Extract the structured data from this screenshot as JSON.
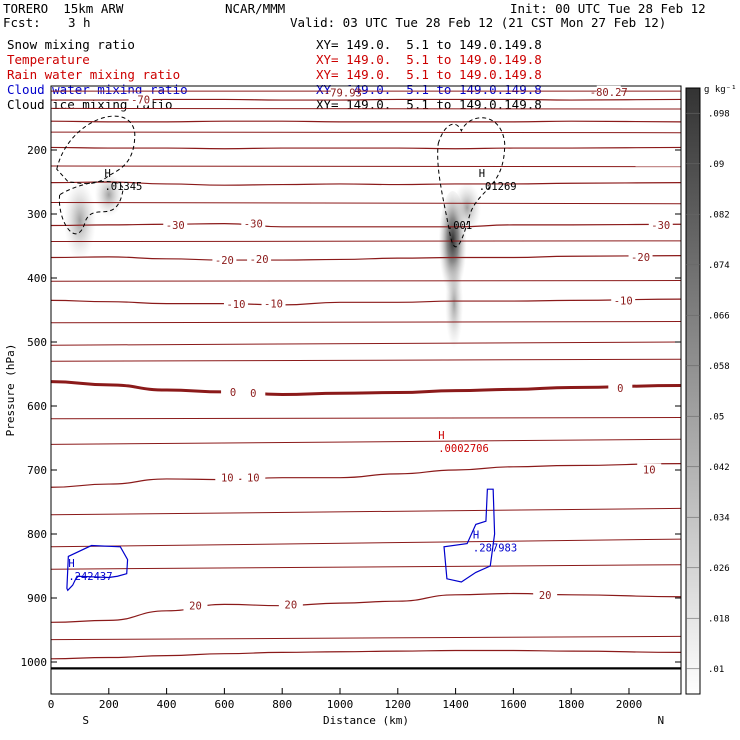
{
  "header": {
    "model": "TORERO  15km ARW",
    "org": "NCAR/MMM",
    "init": "Init: 00 UTC Tue 28 Feb 12",
    "fcst_label": "Fcst:",
    "fcst_value": "3 h",
    "valid": "Valid: 03 UTC Tue 28 Feb 12 (21 CST Mon 27 Feb 12)"
  },
  "fields": [
    {
      "label": "Snow mixing ratio",
      "color": "#000000",
      "xy": "XY= 149.0.  5.1 to 149.0.149.8"
    },
    {
      "label": "Temperature",
      "color": "#cc0000",
      "xy": "XY= 149.0.  5.1 to 149.0.149.8"
    },
    {
      "label": "Rain water mixing ratio",
      "color": "#cc0000",
      "xy": "XY= 149.0.  5.1 to 149.0.149.8"
    },
    {
      "label": "Cloud water mixing ratio",
      "color": "#0000cc",
      "xy": "XY= 149.0.  5.1 to 149.0.149.8"
    },
    {
      "label": "Cloud ice mixing ratio",
      "color": "#000000",
      "xy": "XY= 149.0.  5.1 to 149.0.149.8"
    }
  ],
  "colors": {
    "temperature": "#8b1a1a",
    "rain": "#cc0000",
    "cloud_water": "#0000cc",
    "cloud_ice": "#000000"
  },
  "colorbar": {
    "unit": "g kg⁻¹",
    "ticks": [
      ".01",
      ".018",
      ".026",
      ".034",
      ".042",
      ".05",
      ".058",
      ".066",
      ".074",
      ".082",
      ".09",
      ".098"
    ]
  },
  "chart_data": {
    "type": "contour",
    "xlabel": "Distance (km)",
    "ylabel": "Pressure (hPa)",
    "xlim": [
      0,
      2180
    ],
    "ylim": [
      1050,
      100
    ],
    "xticks": [
      0,
      200,
      400,
      600,
      800,
      1000,
      1200,
      1400,
      1600,
      1800,
      2000
    ],
    "yticks": [
      200,
      300,
      400,
      500,
      600,
      700,
      800,
      900,
      1000
    ],
    "x_end_labels": {
      "left": "S",
      "right": "N"
    },
    "temperature_contours": [
      {
        "level": -70,
        "p": [
          122,
          122,
          121,
          121,
          122,
          122,
          121,
          121,
          121,
          122,
          121
        ]
      },
      {
        "level": -60,
        "p": [
          155,
          156,
          156,
          155,
          155,
          156,
          156,
          156,
          156,
          155,
          156
        ]
      },
      {
        "level": -50,
        "p": [
          196,
          197,
          197,
          198,
          197,
          197,
          197,
          198,
          197,
          197,
          196
        ]
      },
      {
        "level": -40,
        "p": [
          251,
          250,
          253,
          255,
          254,
          253,
          254,
          253,
          253,
          252,
          251
        ]
      },
      {
        "level": -30,
        "p": [
          318,
          317,
          316,
          315,
          320,
          320,
          320,
          320,
          317,
          317,
          316
        ]
      },
      {
        "level": -20,
        "p": [
          368,
          367,
          370,
          372,
          372,
          371,
          369,
          368,
          368,
          366,
          365
        ]
      },
      {
        "level": -10,
        "p": [
          435,
          437,
          440,
          440,
          442,
          438,
          438,
          436,
          436,
          435,
          433
        ]
      },
      {
        "level": 0,
        "p": [
          562,
          567,
          575,
          578,
          582,
          580,
          579,
          576,
          574,
          571,
          568
        ]
      },
      {
        "level": 10,
        "p": [
          727,
          722,
          714,
          715,
          712,
          712,
          706,
          700,
          695,
          693,
          690
        ]
      },
      {
        "level": 20,
        "p": [
          938,
          935,
          920,
          910,
          912,
          908,
          905,
          895,
          893,
          895,
          898
        ]
      },
      {
        "level": 30,
        "p": [
          995,
          993,
          990,
          987,
          985,
          984,
          983,
          982,
          982,
          983,
          985
        ]
      }
    ],
    "temperature_x": [
      0,
      200,
      400,
      600,
      800,
      1000,
      1200,
      1400,
      1600,
      1800,
      2180
    ],
    "temperature_labels": [
      {
        "text": "-70",
        "x": 310,
        "p": 121
      },
      {
        "text": "-80.27",
        "x": 1930,
        "p": 109
      },
      {
        "text": "-79.93",
        "x": 1010,
        "p": 110
      },
      {
        "text": "-30",
        "x": 430,
        "p": 317
      },
      {
        "text": "-30",
        "x": 700,
        "p": 315
      },
      {
        "text": "-30",
        "x": 2110,
        "p": 317
      },
      {
        "text": "-20",
        "x": 600,
        "p": 372
      },
      {
        "text": "-20",
        "x": 720,
        "p": 370
      },
      {
        "text": "-20",
        "x": 2040,
        "p": 367
      },
      {
        "text": "-10",
        "x": 640,
        "p": 441
      },
      {
        "text": "-10",
        "x": 770,
        "p": 440
      },
      {
        "text": "-10",
        "x": 1980,
        "p": 435
      },
      {
        "text": "0",
        "x": 630,
        "p": 578
      },
      {
        "text": "0",
        "x": 700,
        "p": 580
      },
      {
        "text": "0",
        "x": 1970,
        "p": 572
      },
      {
        "text": "10",
        "x": 610,
        "p": 712
      },
      {
        "text": "10",
        "x": 700,
        "p": 712
      },
      {
        "text": "10",
        "x": 2070,
        "p": 699
      },
      {
        "text": "20",
        "x": 500,
        "p": 912
      },
      {
        "text": "20",
        "x": 830,
        "p": 910
      },
      {
        "text": "20",
        "x": 1710,
        "p": 895
      }
    ],
    "maxima_labels": [
      {
        "text": "H",
        "value": ".01345",
        "x": 185,
        "p": 245,
        "color": "#000000"
      },
      {
        "text": "H",
        "value": ".01269",
        "x": 1480,
        "p": 245,
        "color": "#000000"
      },
      {
        "text": "H",
        "value": ".0002706",
        "x": 1340,
        "p": 655,
        "color": "#cc0000"
      },
      {
        "text": "H",
        "value": ".287983",
        "x": 1460,
        "p": 810,
        "color": "#0000cc"
      },
      {
        "text": "H",
        "value": ".242437",
        "x": 60,
        "p": 855,
        "color": "#0000cc"
      },
      {
        "text": "",
        "value": ".001",
        "x": 1370,
        "p": 306,
        "color": "#000000"
      }
    ],
    "ground_pressure": 1010
  }
}
